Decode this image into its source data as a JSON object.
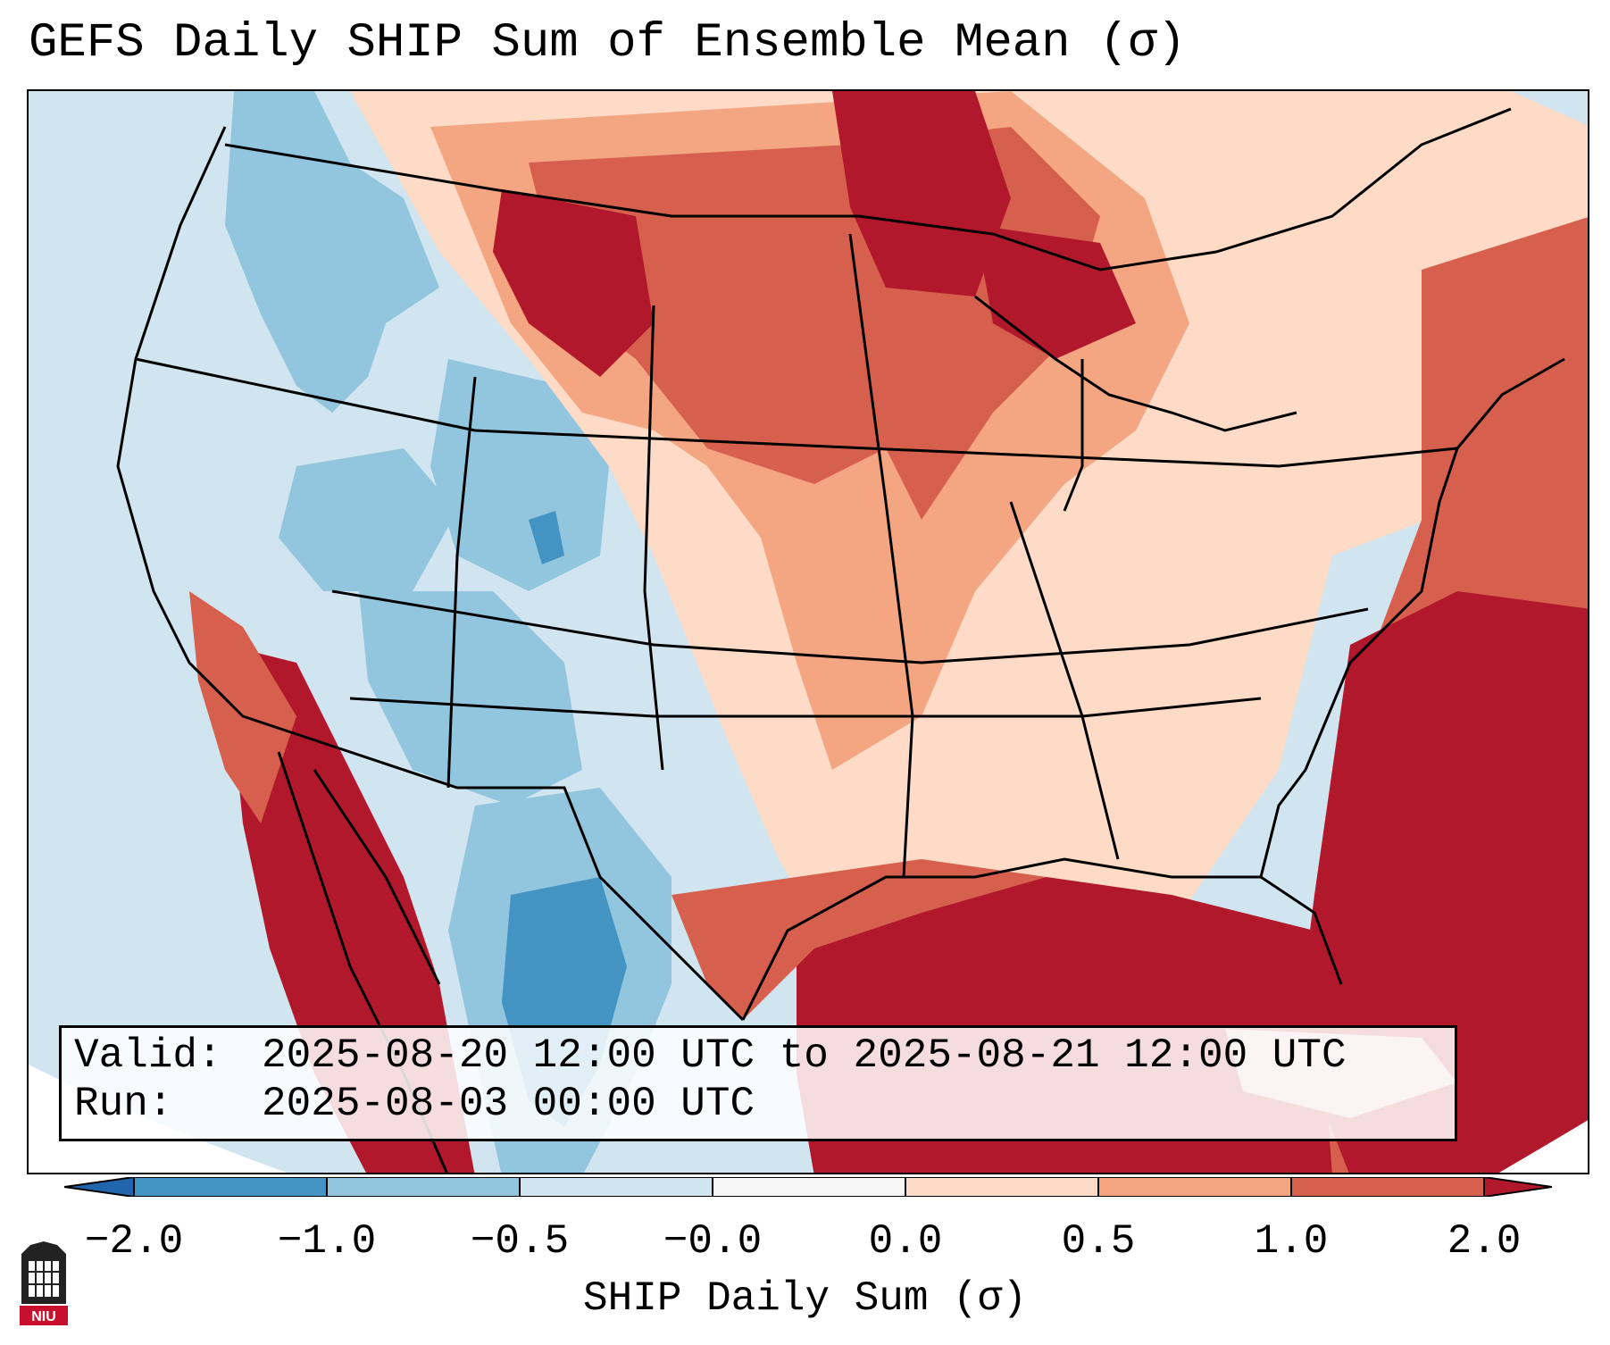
{
  "title": "GEFS Daily SHIP Sum of Ensemble Mean (σ)",
  "info_box": {
    "valid_label": "Valid:",
    "valid_value": "2025-08-20 12:00 UTC to 2025-08-21 12:00 UTC",
    "run_label": "Run:",
    "run_value": "2025-08-03 00:00 UTC"
  },
  "colorbar": {
    "label": "SHIP Daily Sum (σ)",
    "ticks": [
      "−2.0",
      "−1.0",
      "−0.5",
      "−0.0",
      "0.0",
      "0.5",
      "1.0",
      "2.0"
    ],
    "colors": [
      "#4393c3",
      "#92c5de",
      "#d1e5f0",
      "#f7f7f7",
      "#fddbc7",
      "#f4a582",
      "#d6604d",
      "#b2182b"
    ],
    "under_color": "#2166ac",
    "over_color": "#67001f"
  },
  "map": {
    "region": "Contiguous United States",
    "field": "SHIP Daily Sum (σ)",
    "colors": {
      "ocean_background": "#d1e5f0",
      "strong_positive": "#b2182b",
      "positive": "#d6604d",
      "weak_positive": "#f4a582",
      "slight_positive": "#fddbc7",
      "slight_negative": "#d1e5f0",
      "negative": "#92c5de",
      "strong_negative": "#4393c3"
    }
  },
  "logo": {
    "text": "NIU",
    "color": "#c8102e"
  }
}
